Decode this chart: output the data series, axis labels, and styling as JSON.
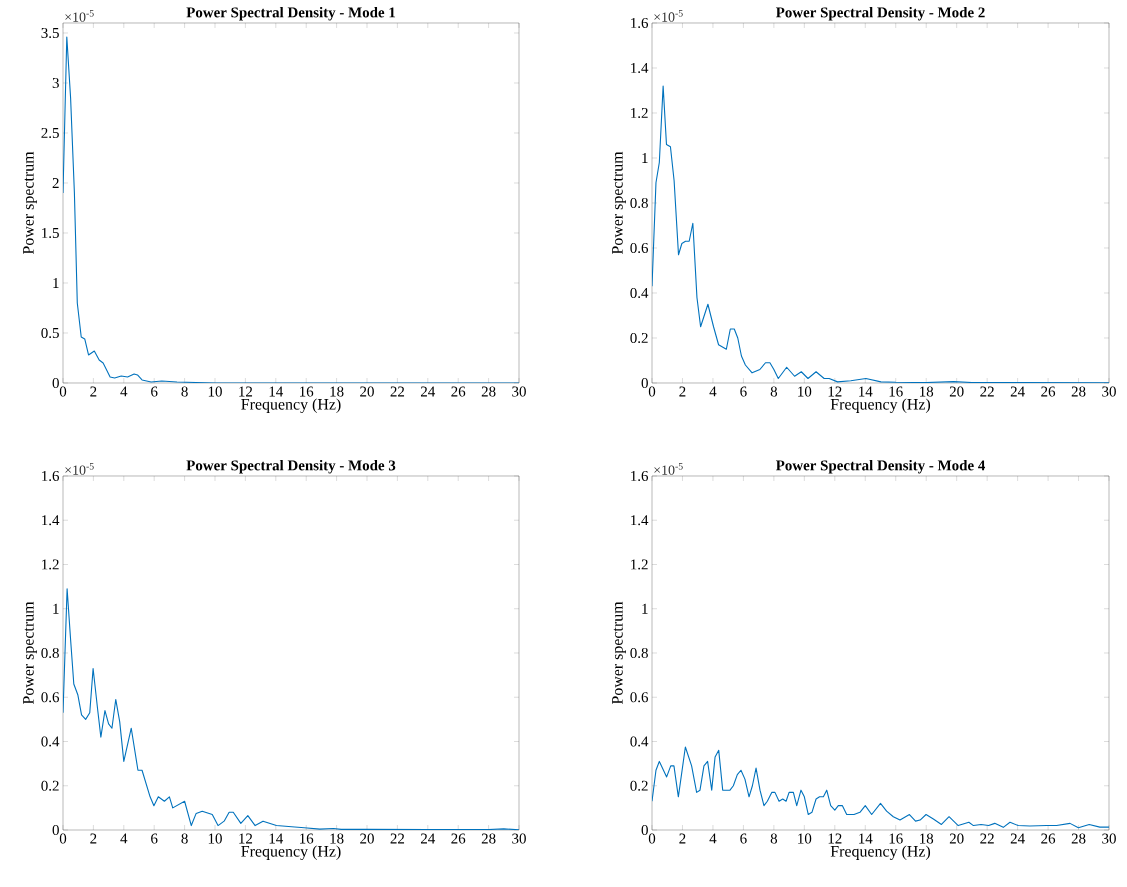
{
  "chart_data": [
    {
      "type": "line",
      "title": "Power Spectral Density - Mode 1",
      "xlabel": "Frequency (Hz)",
      "ylabel": "Power spectrum",
      "annotations": [
        "×10$^{-5}$"
      ],
      "color": "#0072bd",
      "xlim": [
        0,
        30
      ],
      "xticks": [
        0,
        2,
        4,
        6,
        8,
        10,
        12,
        14,
        16,
        18,
        20,
        22,
        24,
        26,
        28,
        30
      ],
      "ylim": [
        0,
        3.6
      ],
      "yticks": [
        0,
        0.5,
        1,
        1.5,
        2,
        2.5,
        3,
        3.5
      ],
      "x": [
        0,
        0.25,
        0.5,
        0.75,
        0.94,
        1.2,
        1.43,
        1.68,
        2.06,
        2.38,
        2.64,
        3.1,
        3.4,
        3.83,
        4.25,
        4.68,
        4.9,
        5.2,
        5.8,
        6.5,
        7.5,
        10,
        15,
        20,
        25,
        30
      ],
      "values": [
        1.9,
        3.46,
        2.85,
        1.9,
        0.8,
        0.46,
        0.44,
        0.28,
        0.32,
        0.23,
        0.2,
        0.06,
        0.05,
        0.07,
        0.06,
        0.09,
        0.08,
        0.03,
        0.01,
        0.02,
        0.01,
        0,
        0,
        0,
        0,
        0
      ]
    },
    {
      "type": "line",
      "title": "Power Spectral Density - Mode 2",
      "xlabel": "Frequency (Hz)",
      "ylabel": "Power spectrum",
      "annotations": [
        "×10$^{-5}$"
      ],
      "color": "#0072bd",
      "xlim": [
        0,
        30
      ],
      "xticks": [
        0,
        2,
        4,
        6,
        8,
        10,
        12,
        14,
        16,
        18,
        20,
        22,
        24,
        26,
        28,
        30
      ],
      "ylim": [
        0,
        1.6
      ],
      "yticks": [
        0,
        0.2,
        0.4,
        0.6,
        0.8,
        1,
        1.2,
        1.4,
        1.6
      ],
      "x": [
        0,
        0.26,
        0.48,
        0.73,
        0.95,
        1.21,
        1.45,
        1.74,
        1.96,
        2.2,
        2.44,
        2.68,
        2.95,
        3.19,
        3.67,
        4.04,
        4.37,
        4.88,
        5.14,
        5.4,
        5.63,
        5.87,
        6.13,
        6.57,
        7.08,
        7.45,
        7.74,
        8.0,
        8.29,
        8.84,
        9.36,
        9.8,
        10.24,
        10.77,
        11.3,
        11.63,
        12.18,
        13.05,
        14.04,
        15.03,
        16,
        18,
        19.8,
        21,
        24,
        30
      ],
      "values": [
        0.43,
        0.89,
        0.98,
        1.32,
        1.06,
        1.05,
        0.9,
        0.57,
        0.62,
        0.63,
        0.63,
        0.71,
        0.38,
        0.25,
        0.35,
        0.25,
        0.17,
        0.15,
        0.24,
        0.24,
        0.2,
        0.12,
        0.08,
        0.045,
        0.06,
        0.09,
        0.09,
        0.06,
        0.02,
        0.07,
        0.03,
        0.05,
        0.02,
        0.05,
        0.02,
        0.02,
        0.005,
        0.01,
        0.02,
        0.005,
        0.003,
        0.002,
        0.006,
        0.002,
        0.002,
        0.001
      ]
    },
    {
      "type": "line",
      "title": "Power Spectral Density - Mode 3",
      "xlabel": "Frequency (Hz)",
      "ylabel": "Power spectrum",
      "annotations": [
        "×10$^{-5}$"
      ],
      "color": "#0072bd",
      "xlim": [
        0,
        30
      ],
      "xticks": [
        0,
        2,
        4,
        6,
        8,
        10,
        12,
        14,
        16,
        18,
        20,
        22,
        24,
        26,
        28,
        30
      ],
      "ylim": [
        0,
        1.6
      ],
      "yticks": [
        0,
        0.2,
        0.4,
        0.6,
        0.8,
        1,
        1.2,
        1.4,
        1.6
      ],
      "x": [
        0,
        0.27,
        0.49,
        0.71,
        0.98,
        1.22,
        1.49,
        1.76,
        1.98,
        2.27,
        2.49,
        2.76,
        3.0,
        3.22,
        3.47,
        3.73,
        4.0,
        4.49,
        4.93,
        5.2,
        5.73,
        5.98,
        6.27,
        6.67,
        7.0,
        7.22,
        8.0,
        8.44,
        8.76,
        9.16,
        9.82,
        10.2,
        10.6,
        10.93,
        11.2,
        11.7,
        12.16,
        12.64,
        13.16,
        14.04,
        15.04,
        15.87,
        16.9,
        17.8,
        18.3,
        20,
        24,
        28,
        29,
        30
      ],
      "values": [
        0.53,
        1.09,
        0.87,
        0.66,
        0.61,
        0.52,
        0.5,
        0.53,
        0.73,
        0.55,
        0.42,
        0.54,
        0.48,
        0.46,
        0.59,
        0.49,
        0.31,
        0.46,
        0.27,
        0.27,
        0.15,
        0.11,
        0.15,
        0.13,
        0.15,
        0.1,
        0.13,
        0.02,
        0.075,
        0.085,
        0.07,
        0.02,
        0.04,
        0.08,
        0.08,
        0.03,
        0.065,
        0.02,
        0.04,
        0.02,
        0.015,
        0.01,
        0.004,
        0.007,
        0.003,
        0.003,
        0.002,
        0.002,
        0.005,
        0.001
      ]
    },
    {
      "type": "line",
      "title": "Power Spectral Density - Mode 4",
      "xlabel": "Frequency (Hz)",
      "ylabel": "Power spectrum",
      "annotations": [
        "×10$^{-5}$"
      ],
      "color": "#0072bd",
      "xlim": [
        0,
        30
      ],
      "xticks": [
        0,
        2,
        4,
        6,
        8,
        10,
        12,
        14,
        16,
        18,
        20,
        22,
        24,
        26,
        28,
        30
      ],
      "ylim": [
        0,
        1.6
      ],
      "yticks": [
        0,
        0.2,
        0.4,
        0.6,
        0.8,
        1,
        1.2,
        1.4,
        1.6
      ],
      "x": [
        0,
        0.26,
        0.48,
        0.96,
        1.23,
        1.44,
        1.73,
        2.19,
        2.6,
        2.93,
        3.15,
        3.41,
        3.65,
        3.92,
        4.14,
        4.38,
        4.64,
        5.12,
        5.34,
        5.6,
        5.84,
        6.1,
        6.37,
        6.59,
        6.83,
        7.09,
        7.35,
        7.57,
        7.86,
        8.07,
        8.34,
        8.58,
        8.8,
        9.0,
        9.28,
        9.5,
        9.78,
        10.0,
        10.26,
        10.5,
        10.77,
        11.0,
        11.25,
        11.47,
        11.73,
        12.0,
        12.23,
        12.5,
        12.78,
        13.26,
        13.65,
        14.0,
        14.42,
        15.0,
        15.4,
        15.84,
        16.28,
        16.9,
        17.3,
        17.6,
        17.99,
        18.47,
        19.0,
        19.5,
        20.1,
        20.8,
        21.1,
        21.6,
        22.1,
        22.5,
        23.06,
        23.5,
        24.04,
        24.8,
        25.9,
        26.56,
        27.44,
        27.99,
        28.7,
        29.4,
        30
      ],
      "values": [
        0.13,
        0.27,
        0.31,
        0.24,
        0.29,
        0.29,
        0.15,
        0.375,
        0.29,
        0.17,
        0.18,
        0.29,
        0.31,
        0.18,
        0.33,
        0.36,
        0.18,
        0.18,
        0.2,
        0.25,
        0.27,
        0.23,
        0.15,
        0.2,
        0.28,
        0.18,
        0.11,
        0.13,
        0.17,
        0.17,
        0.13,
        0.14,
        0.13,
        0.17,
        0.17,
        0.11,
        0.18,
        0.15,
        0.07,
        0.08,
        0.14,
        0.15,
        0.15,
        0.18,
        0.11,
        0.09,
        0.11,
        0.11,
        0.07,
        0.07,
        0.08,
        0.11,
        0.07,
        0.12,
        0.085,
        0.06,
        0.045,
        0.07,
        0.04,
        0.045,
        0.07,
        0.05,
        0.025,
        0.06,
        0.02,
        0.035,
        0.02,
        0.025,
        0.02,
        0.03,
        0.012,
        0.035,
        0.02,
        0.018,
        0.02,
        0.02,
        0.03,
        0.01,
        0.025,
        0.013,
        0.013
      ]
    }
  ]
}
